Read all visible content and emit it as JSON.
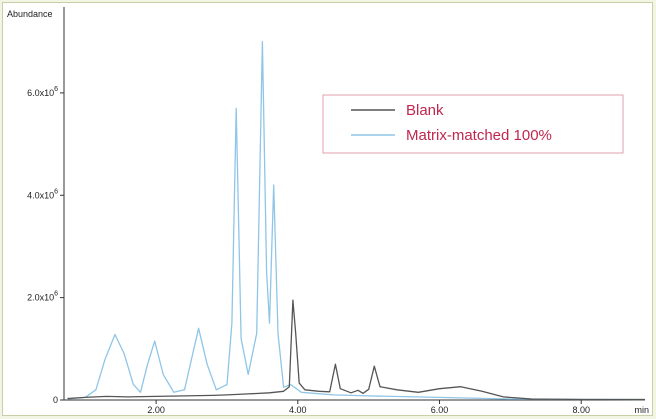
{
  "chart_data": {
    "type": "line",
    "ylabel": "Abundance",
    "xunit": "min",
    "xlim": [
      0.7,
      8.9
    ],
    "ylim": [
      0,
      7600000
    ],
    "x_ticks": [
      2,
      4,
      6,
      8
    ],
    "x_tick_labels": [
      "2.00",
      "4.00",
      "6.00",
      "8.00"
    ],
    "y_ticks": [
      {
        "value": 0,
        "base": "0",
        "exp": ""
      },
      {
        "value": 2000000,
        "base": "2.0x10",
        "exp": "6"
      },
      {
        "value": 4000000,
        "base": "4.0x10",
        "exp": "6"
      },
      {
        "value": 6000000,
        "base": "6.0x10",
        "exp": "6"
      }
    ],
    "legend_position": "top-right",
    "legend_text_color": "#c0264e",
    "legend_border_color": "#e2a1ae",
    "series": [
      {
        "name": "Blank",
        "color": "#555555",
        "points": [
          [
            0.75,
            30000
          ],
          [
            1.0,
            50000
          ],
          [
            1.3,
            70000
          ],
          [
            1.6,
            60000
          ],
          [
            2.0,
            70000
          ],
          [
            2.4,
            80000
          ],
          [
            2.8,
            90000
          ],
          [
            3.0,
            100000
          ],
          [
            3.3,
            120000
          ],
          [
            3.6,
            140000
          ],
          [
            3.8,
            170000
          ],
          [
            3.88,
            260000
          ],
          [
            3.93,
            1950000
          ],
          [
            3.97,
            1300000
          ],
          [
            4.02,
            330000
          ],
          [
            4.1,
            200000
          ],
          [
            4.3,
            170000
          ],
          [
            4.45,
            160000
          ],
          [
            4.53,
            700000
          ],
          [
            4.6,
            220000
          ],
          [
            4.75,
            140000
          ],
          [
            4.85,
            190000
          ],
          [
            4.92,
            130000
          ],
          [
            5.0,
            210000
          ],
          [
            5.08,
            660000
          ],
          [
            5.16,
            260000
          ],
          [
            5.4,
            200000
          ],
          [
            5.7,
            150000
          ],
          [
            6.0,
            220000
          ],
          [
            6.3,
            260000
          ],
          [
            6.6,
            170000
          ],
          [
            6.9,
            60000
          ],
          [
            7.3,
            20000
          ],
          [
            8.0,
            10000
          ],
          [
            8.9,
            10000
          ]
        ]
      },
      {
        "name": "Matrix-matched 100%",
        "color": "#8fc5e6",
        "points": [
          [
            0.75,
            20000
          ],
          [
            1.0,
            50000
          ],
          [
            1.15,
            200000
          ],
          [
            1.28,
            800000
          ],
          [
            1.42,
            1280000
          ],
          [
            1.55,
            900000
          ],
          [
            1.68,
            300000
          ],
          [
            1.78,
            150000
          ],
          [
            1.88,
            700000
          ],
          [
            1.98,
            1150000
          ],
          [
            2.1,
            500000
          ],
          [
            2.25,
            150000
          ],
          [
            2.4,
            200000
          ],
          [
            2.5,
            800000
          ],
          [
            2.6,
            1400000
          ],
          [
            2.72,
            700000
          ],
          [
            2.85,
            200000
          ],
          [
            3.0,
            300000
          ],
          [
            3.07,
            1500000
          ],
          [
            3.13,
            5700000
          ],
          [
            3.2,
            1200000
          ],
          [
            3.3,
            500000
          ],
          [
            3.42,
            1300000
          ],
          [
            3.5,
            7000000
          ],
          [
            3.56,
            2500000
          ],
          [
            3.6,
            1500000
          ],
          [
            3.66,
            4200000
          ],
          [
            3.72,
            1300000
          ],
          [
            3.8,
            250000
          ],
          [
            3.9,
            300000
          ],
          [
            4.05,
            150000
          ],
          [
            4.5,
            100000
          ],
          [
            5.0,
            80000
          ],
          [
            6.0,
            50000
          ],
          [
            7.0,
            20000
          ],
          [
            8.9,
            10000
          ]
        ]
      }
    ]
  }
}
